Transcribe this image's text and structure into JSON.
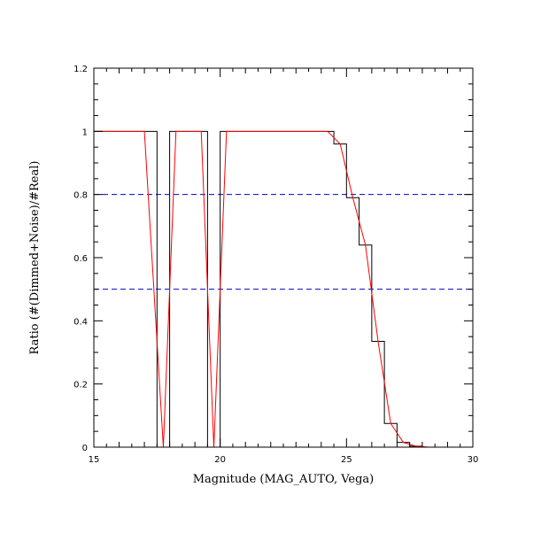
{
  "chart_data": {
    "type": "line",
    "title": "",
    "xlabel": "Magnitude (MAG_AUTO, Vega)",
    "ylabel": "Ratio (#(Dimmed+Noise)/#Real)",
    "xlim": [
      15,
      30
    ],
    "ylim": [
      0,
      1.2
    ],
    "grid": false,
    "x_ticks": [
      15,
      20,
      25,
      30
    ],
    "x_tick_labels": [
      "15",
      "20",
      "25",
      "30"
    ],
    "y_ticks": [
      0,
      0.2,
      0.4,
      0.6,
      0.8,
      1,
      1.2
    ],
    "y_tick_labels": [
      "0",
      "0.2",
      "0.4",
      "0.6",
      "0.8",
      "1",
      "1.2"
    ],
    "series": [
      {
        "style": "histogram-step",
        "color": "#000000",
        "bin_width": 0.5,
        "bin_starts": [
          15,
          15.5,
          16,
          16.5,
          17,
          17.5,
          18,
          18.5,
          19,
          19.5,
          20,
          20.5,
          21,
          21.5,
          22,
          22.5,
          23,
          23.5,
          24,
          24.5,
          25,
          25.5,
          26,
          26.5,
          27,
          27.5,
          28,
          28.5,
          29,
          29.5
        ],
        "values": [
          1,
          1,
          1,
          1,
          1,
          0,
          1,
          1,
          1,
          0,
          1,
          1,
          1,
          1,
          1,
          1,
          1,
          1,
          1,
          0.96,
          0.79,
          0.64,
          0.335,
          0.075,
          0.015,
          0.003,
          0,
          0,
          0,
          0
        ]
      },
      {
        "style": "line",
        "color": "#ff0000",
        "x": [
          15,
          15.5,
          16,
          16.5,
          17,
          17.75,
          18.25,
          18.75,
          19.25,
          19.75,
          20.25,
          20.75,
          21.25,
          21.75,
          22.25,
          22.75,
          23.25,
          23.75,
          24.25,
          24.75,
          25.25,
          25.75,
          26.25,
          26.75,
          27.25,
          27.75,
          28.25,
          28.75,
          29.25,
          29.75
        ],
        "y": [
          1,
          1,
          1,
          1,
          1,
          0,
          1,
          1,
          1,
          0,
          1,
          1,
          1,
          1,
          1,
          1,
          1,
          1,
          1,
          0.96,
          0.79,
          0.64,
          0.335,
          0.075,
          0.015,
          0.003,
          0,
          0,
          0,
          0
        ]
      }
    ],
    "reference_lines": [
      {
        "orientation": "horizontal",
        "y": 0.8,
        "color": "#0000cc",
        "dash": "dashed"
      },
      {
        "orientation": "horizontal",
        "y": 0.5,
        "color": "#0000cc",
        "dash": "dashed"
      }
    ]
  }
}
